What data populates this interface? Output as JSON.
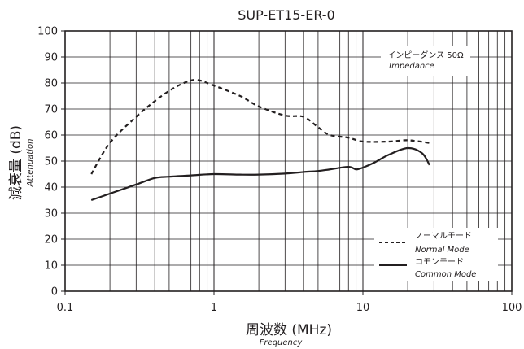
{
  "chart_data": {
    "type": "line",
    "title": "SUP-ET15-ER-0",
    "xlabel": "周波数 (MHz)",
    "xlabel_sub": "Frequency",
    "ylabel": "減衰量 (dB)",
    "ylabel_sub": "Attenuation",
    "xscale": "log",
    "xlim": [
      0.1,
      100
    ],
    "ylim": [
      0,
      100
    ],
    "x_ticks": [
      0.1,
      1,
      10,
      100
    ],
    "x_tick_labels": [
      "0.1",
      "1",
      "10",
      "100"
    ],
    "y_ticks": [
      0,
      10,
      20,
      30,
      40,
      50,
      60,
      70,
      80,
      90,
      100
    ],
    "y_tick_labels": [
      "0",
      "10",
      "20",
      "30",
      "40",
      "50",
      "60",
      "70",
      "80",
      "90",
      "100"
    ],
    "grid": true,
    "annotation": {
      "text_jp": "インピーダンス 50Ω",
      "text_en": "Impedance"
    },
    "legend_position": "bottom-right",
    "series": [
      {
        "name": "ノーマルモード",
        "name_en": "Normal Mode",
        "style": "dashed",
        "x": [
          0.15,
          0.2,
          0.3,
          0.4,
          0.5,
          0.6,
          0.7,
          0.8,
          1.0,
          1.5,
          2.0,
          3.0,
          4.0,
          5.0,
          6.0,
          8.0,
          10.0,
          15.0,
          20.0,
          28.0
        ],
        "y": [
          45,
          57,
          67,
          73,
          77,
          79.5,
          81,
          81,
          79,
          75,
          71,
          67.5,
          67,
          63,
          60,
          59,
          57.5,
          57.5,
          58,
          57
        ]
      },
      {
        "name": "コモンモード",
        "name_en": "Common Mode",
        "style": "solid",
        "x": [
          0.15,
          0.2,
          0.3,
          0.4,
          0.5,
          0.7,
          1.0,
          1.5,
          2.0,
          3.0,
          4.0,
          5.0,
          6.0,
          8.0,
          9.0,
          10.0,
          12.0,
          15.0,
          20.0,
          25.0,
          28.0
        ],
        "y": [
          35,
          37.5,
          41,
          43.5,
          44,
          44.5,
          45,
          44.8,
          44.8,
          45.2,
          45.8,
          46.2,
          46.8,
          47.8,
          46.8,
          47.5,
          49.5,
          52.5,
          55,
          53,
          48.5
        ]
      }
    ]
  }
}
